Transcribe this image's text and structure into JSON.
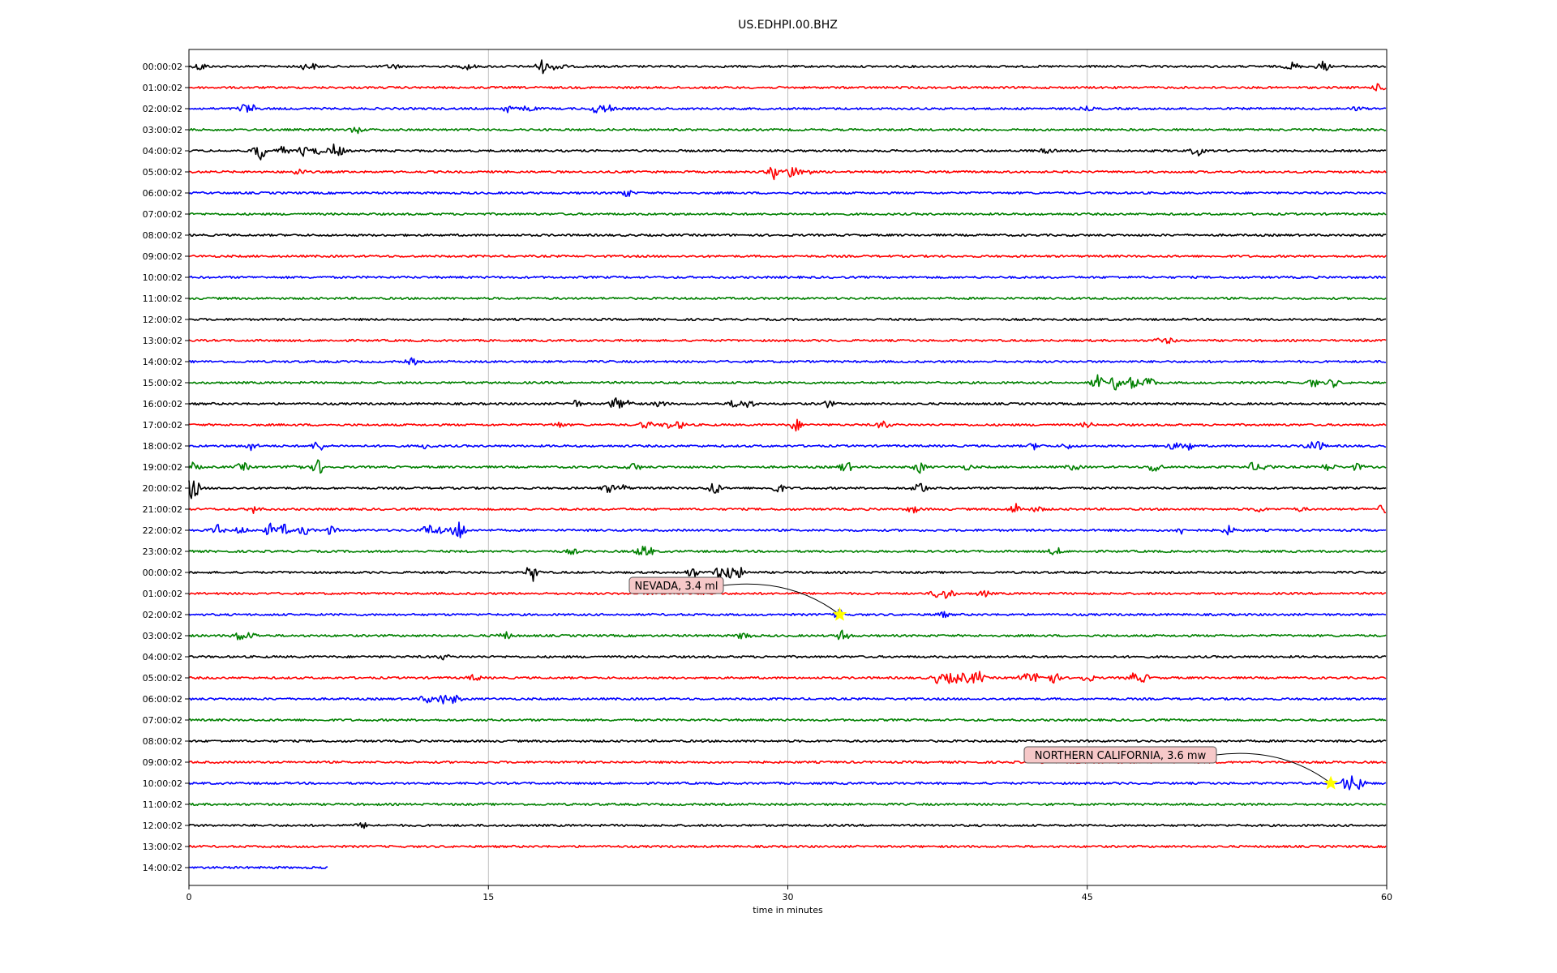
{
  "chart_data": {
    "type": "line",
    "title": "US.EDHPI.00.BHZ",
    "xlabel": "time in minutes",
    "ylabel": "",
    "xlim": [
      0,
      60
    ],
    "x_ticks": [
      "0",
      "15",
      "30",
      "45",
      "60"
    ],
    "x_tick_values": [
      0,
      15,
      30,
      45,
      60
    ],
    "vertical_grid": true,
    "trace_colors": [
      "#000000",
      "#ff0000",
      "#0000ff",
      "#008000"
    ],
    "rows": [
      {
        "label": "00:00:02",
        "bursts": [
          [
            0.6,
            5
          ],
          [
            5.8,
            3
          ],
          [
            6.2,
            3
          ],
          [
            10.2,
            3
          ],
          [
            14,
            4
          ],
          [
            17.7,
            8
          ],
          [
            18.5,
            6
          ],
          [
            55.3,
            5
          ],
          [
            56.8,
            6
          ],
          [
            55.2,
            3
          ]
        ]
      },
      {
        "label": "01:00:02",
        "bursts": [
          [
            59.6,
            4
          ]
        ]
      },
      {
        "label": "02:00:02",
        "bursts": [
          [
            2.8,
            6
          ],
          [
            3.2,
            4
          ],
          [
            16,
            5
          ],
          [
            17,
            4
          ],
          [
            20.5,
            7
          ],
          [
            21,
            5
          ],
          [
            45,
            2
          ],
          [
            58.5,
            2
          ]
        ]
      },
      {
        "label": "03:00:02",
        "bursts": [
          [
            8.4,
            4
          ]
        ]
      },
      {
        "label": "04:00:02",
        "bursts": [
          [
            3.5,
            14
          ],
          [
            4.7,
            5
          ],
          [
            5.8,
            7
          ],
          [
            6.5,
            4
          ],
          [
            7.3,
            8
          ],
          [
            7.5,
            6
          ],
          [
            43,
            3
          ],
          [
            50.5,
            6
          ]
        ]
      },
      {
        "label": "05:00:02",
        "bursts": [
          [
            5.5,
            4
          ],
          [
            29.3,
            9
          ],
          [
            30.2,
            8
          ],
          [
            30.8,
            6
          ]
        ]
      },
      {
        "label": "06:00:02",
        "bursts": [
          [
            21.9,
            5
          ]
        ]
      },
      {
        "label": "07:00:02",
        "bursts": []
      },
      {
        "label": "08:00:02",
        "bursts": []
      },
      {
        "label": "09:00:02",
        "bursts": []
      },
      {
        "label": "10:00:02",
        "bursts": []
      },
      {
        "label": "11:00:02",
        "bursts": []
      },
      {
        "label": "12:00:02",
        "bursts": []
      },
      {
        "label": "13:00:02",
        "bursts": [
          [
            48.7,
            3
          ],
          [
            49.1,
            3
          ]
        ]
      },
      {
        "label": "14:00:02",
        "bursts": [
          [
            11.2,
            4
          ]
        ]
      },
      {
        "label": "15:00:02",
        "bursts": [
          [
            45.5,
            9
          ],
          [
            46.5,
            11
          ],
          [
            47.3,
            8
          ],
          [
            48.1,
            7
          ],
          [
            56.3,
            5
          ],
          [
            57.3,
            5
          ]
        ]
      },
      {
        "label": "16:00:02",
        "bursts": [
          [
            19.3,
            5
          ],
          [
            21.4,
            8
          ],
          [
            22,
            5
          ],
          [
            23.6,
            4
          ],
          [
            27.4,
            6
          ],
          [
            28,
            5
          ],
          [
            32,
            4
          ]
        ]
      },
      {
        "label": "17:00:02",
        "bursts": [
          [
            18.5,
            3
          ],
          [
            22.9,
            5
          ],
          [
            24,
            4
          ],
          [
            24.6,
            4
          ],
          [
            30.4,
            7
          ],
          [
            34.8,
            5
          ],
          [
            45,
            3
          ]
        ]
      },
      {
        "label": "18:00:02",
        "bursts": [
          [
            3.1,
            5
          ],
          [
            6.5,
            7
          ],
          [
            11.9,
            3
          ],
          [
            42.4,
            4
          ],
          [
            44,
            3
          ],
          [
            49.3,
            4
          ],
          [
            50,
            6
          ],
          [
            56.2,
            6
          ],
          [
            56.6,
            5
          ]
        ]
      },
      {
        "label": "19:00:02",
        "bursts": [
          [
            0.2,
            5
          ],
          [
            2.7,
            5
          ],
          [
            5.3,
            5
          ],
          [
            6.5,
            9
          ],
          [
            22.3,
            5
          ],
          [
            32.9,
            7
          ],
          [
            36.6,
            7
          ],
          [
            39,
            3
          ],
          [
            44.3,
            4
          ],
          [
            48.4,
            8
          ],
          [
            53.3,
            5
          ],
          [
            54,
            4
          ],
          [
            57.1,
            5
          ],
          [
            58.5,
            4
          ]
        ]
      },
      {
        "label": "20:00:02",
        "bursts": [
          [
            0.2,
            15
          ],
          [
            21,
            5
          ],
          [
            21.7,
            4
          ],
          [
            26.3,
            9
          ],
          [
            29.5,
            6
          ],
          [
            36.6,
            9
          ]
        ]
      },
      {
        "label": "21:00:02",
        "bursts": [
          [
            3.3,
            5
          ],
          [
            36.3,
            4
          ],
          [
            41.4,
            7
          ],
          [
            42.5,
            3
          ],
          [
            53.6,
            3
          ],
          [
            55.7,
            2
          ],
          [
            59.8,
            5
          ]
        ]
      },
      {
        "label": "22:00:02",
        "bursts": [
          [
            1.4,
            7
          ],
          [
            2.6,
            4
          ],
          [
            4.1,
            8
          ],
          [
            4.8,
            7
          ],
          [
            5.8,
            6
          ],
          [
            7.1,
            5
          ],
          [
            12,
            7
          ],
          [
            12.6,
            5
          ],
          [
            13.5,
            15
          ],
          [
            49.7,
            4
          ],
          [
            52.1,
            5
          ]
        ]
      },
      {
        "label": "23:00:02",
        "bursts": [
          [
            19.2,
            3
          ],
          [
            22.6,
            4
          ],
          [
            22.9,
            9
          ],
          [
            43.4,
            5
          ]
        ]
      },
      {
        "label": "00:00:02",
        "bursts": [
          [
            17.2,
            11
          ],
          [
            25.2,
            6
          ],
          [
            26.5,
            7
          ],
          [
            27.1,
            9
          ],
          [
            27.6,
            6
          ]
        ]
      },
      {
        "label": "01:00:02",
        "bursts": [
          [
            37.5,
            5
          ],
          [
            38,
            7
          ],
          [
            39.8,
            4
          ]
        ]
      },
      {
        "label": "02:00:02",
        "bursts": [
          [
            32.6,
            6
          ],
          [
            37.7,
            4
          ]
        ]
      },
      {
        "label": "03:00:02",
        "bursts": [
          [
            2.5,
            6
          ],
          [
            3.1,
            4
          ],
          [
            15.8,
            5
          ],
          [
            27.8,
            5
          ],
          [
            32.8,
            8
          ]
        ]
      },
      {
        "label": "04:00:02",
        "bursts": [
          [
            12.7,
            3
          ]
        ]
      },
      {
        "label": "05:00:02",
        "bursts": [
          [
            14.3,
            4
          ],
          [
            37.5,
            6
          ],
          [
            38,
            7
          ],
          [
            38.5,
            7
          ],
          [
            38.9,
            7
          ],
          [
            39.5,
            9
          ],
          [
            41.9,
            6
          ],
          [
            42.5,
            6
          ],
          [
            43.3,
            7
          ],
          [
            45,
            5
          ],
          [
            47.3,
            5
          ],
          [
            47.8,
            5
          ]
        ]
      },
      {
        "label": "06:00:02",
        "bursts": [
          [
            11.9,
            5
          ],
          [
            12.7,
            6
          ],
          [
            13.3,
            5
          ]
        ]
      },
      {
        "label": "07:00:02",
        "bursts": []
      },
      {
        "label": "08:00:02",
        "bursts": []
      },
      {
        "label": "09:00:02",
        "bursts": []
      },
      {
        "label": "10:00:02",
        "bursts": [
          [
            58.1,
            12
          ],
          [
            58.6,
            8
          ]
        ]
      },
      {
        "label": "11:00:02",
        "bursts": []
      },
      {
        "label": "12:00:02",
        "bursts": [
          [
            8.7,
            3
          ]
        ]
      },
      {
        "label": "13:00:02",
        "bursts": []
      },
      {
        "label": "14:00:02",
        "bursts": [],
        "end_minute": 7
      }
    ],
    "annotations": [
      {
        "text": "NEVADA, 3.4 ml",
        "row": 26,
        "minute": 32.6,
        "marker_color": "#ffff00"
      },
      {
        "text": "NORTHERN CALIFORNIA, 3.6 mw",
        "row": 34,
        "minute": 57.2,
        "marker_color": "#ffff00"
      }
    ]
  }
}
